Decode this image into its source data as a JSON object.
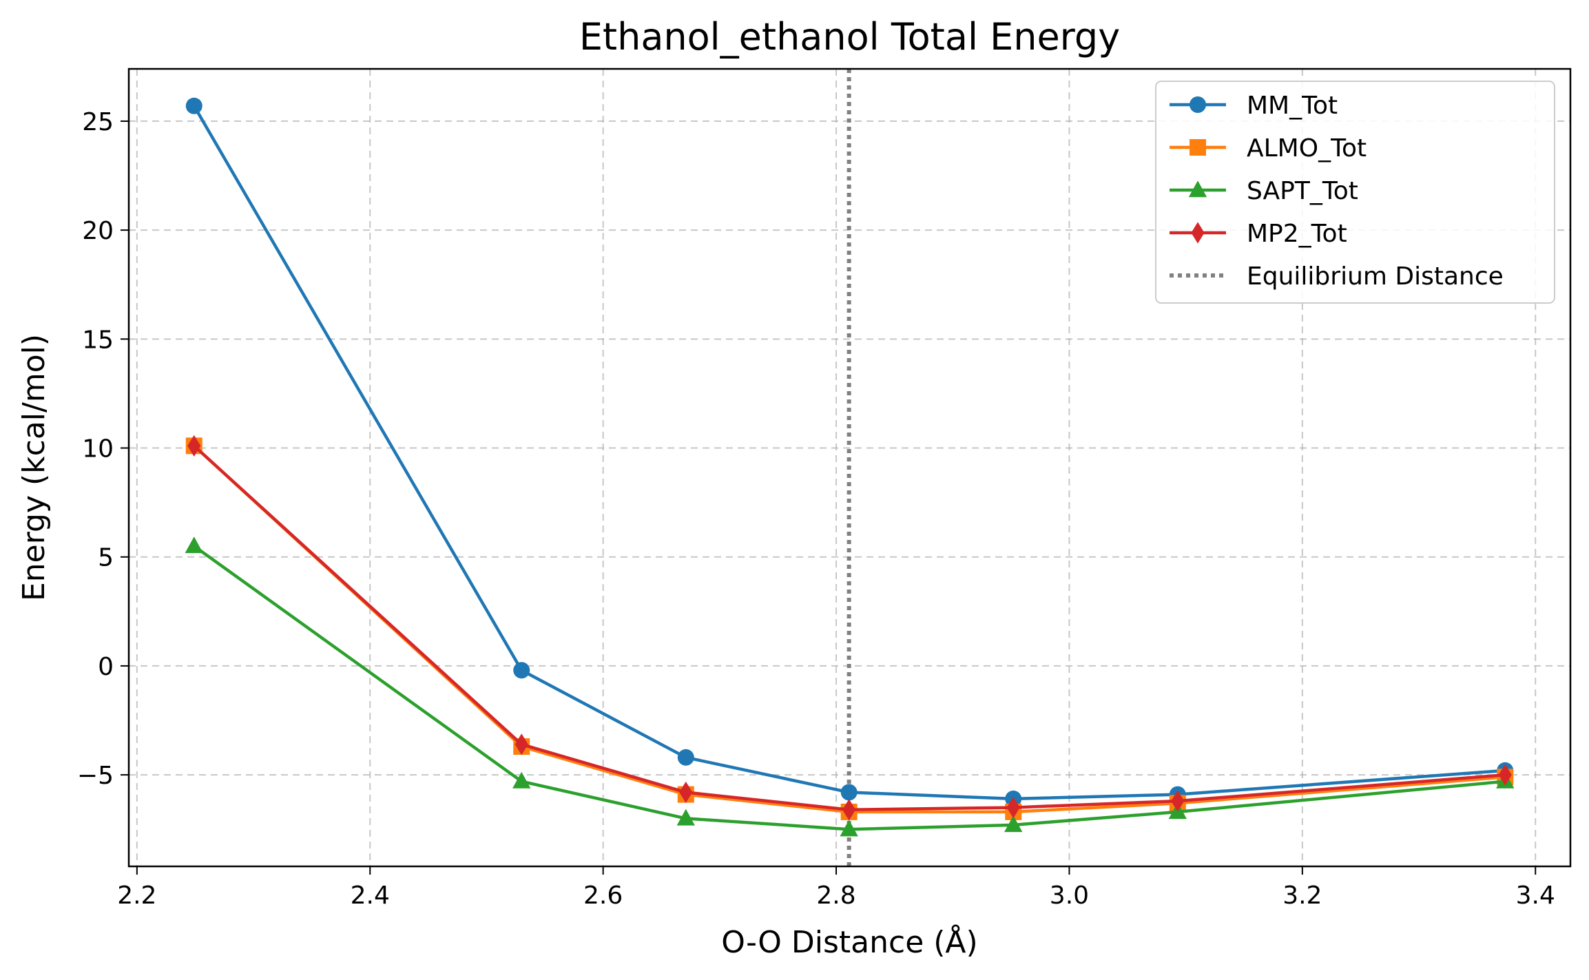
{
  "chart_data": {
    "type": "line",
    "title": "Ethanol_ethanol Total Energy",
    "xlabel": "O-O Distance (Å)",
    "ylabel": "Energy (kcal/mol)",
    "xlim": [
      2.193,
      3.43
    ],
    "ylim": [
      -9.2,
      27.4
    ],
    "grid": true,
    "legend_position": "top-right",
    "x_ticks": [
      2.2,
      2.4,
      2.6,
      2.8,
      3.0,
      3.2,
      3.4
    ],
    "x_tick_labels": [
      "2.2",
      "2.4",
      "2.6",
      "2.8",
      "3.0",
      "3.2",
      "3.4"
    ],
    "y_ticks": [
      -5,
      0,
      5,
      10,
      15,
      20,
      25
    ],
    "y_tick_labels": [
      "−5",
      "0",
      "5",
      "10",
      "15",
      "20",
      "25"
    ],
    "x": [
      2.249,
      2.53,
      2.671,
      2.811,
      2.952,
      3.093,
      3.374
    ],
    "series": [
      {
        "name": "MM_Tot",
        "color": "#1f77b4",
        "marker": "circle",
        "values": [
          25.7,
          -0.2,
          -4.2,
          -5.8,
          -6.1,
          -5.9,
          -4.8
        ]
      },
      {
        "name": "ALMO_Tot",
        "color": "#ff7f0e",
        "marker": "square",
        "values": [
          10.1,
          -3.7,
          -5.9,
          -6.7,
          -6.7,
          -6.3,
          -5.1
        ]
      },
      {
        "name": "SAPT_Tot",
        "color": "#2ca02c",
        "marker": "triangle",
        "values": [
          5.5,
          -5.3,
          -7.0,
          -7.5,
          -7.3,
          -6.7,
          -5.3
        ]
      },
      {
        "name": "MP2_Tot",
        "color": "#d62728",
        "marker": "diamond",
        "values": [
          10.1,
          -3.6,
          -5.8,
          -6.6,
          -6.5,
          -6.2,
          -5.0
        ]
      }
    ],
    "reference_line": {
      "name": "Equilibrium Distance",
      "x": 2.811,
      "color": "#808080",
      "style": "dotted"
    }
  }
}
